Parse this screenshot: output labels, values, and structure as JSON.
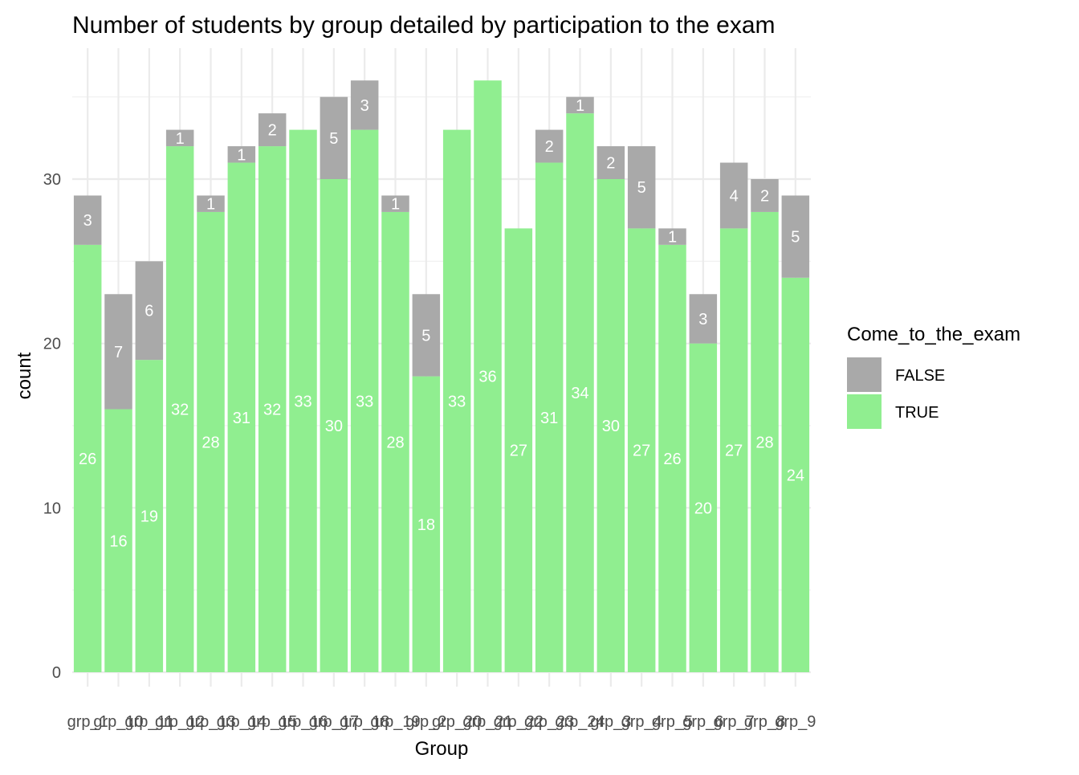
{
  "chart_data": {
    "type": "bar",
    "stacked": true,
    "title": "Number of students by group detailed by participation to the exam",
    "xlabel": "Group",
    "ylabel": "count",
    "ylim": [
      0,
      37.8
    ],
    "y_ticks": [
      0,
      10,
      20,
      30
    ],
    "grid": true,
    "legend_position": "right",
    "legend_title": "Come_to_the_exam",
    "categories": [
      "grp_1",
      "grp_10",
      "grp_11",
      "grp_12",
      "grp_13",
      "grp_14",
      "grp_15",
      "grp_16",
      "grp_17",
      "grp_18",
      "grp_19",
      "grp_2",
      "grp_20",
      "grp_21",
      "grp_22",
      "grp_23",
      "grp_24",
      "grp_3",
      "grp_4",
      "grp_5",
      "grp_6",
      "grp_7",
      "grp_8",
      "grp_9"
    ],
    "series": [
      {
        "name": "TRUE",
        "color": "#90EE90",
        "values": [
          26,
          16,
          19,
          32,
          28,
          31,
          32,
          33,
          30,
          33,
          28,
          18,
          33,
          36,
          27,
          31,
          34,
          30,
          27,
          26,
          20,
          27,
          28,
          24
        ]
      },
      {
        "name": "FALSE",
        "color": "#A9A9A9",
        "values": [
          3,
          7,
          6,
          1,
          1,
          1,
          2,
          0,
          5,
          3,
          1,
          5,
          0,
          0,
          0,
          2,
          1,
          2,
          5,
          1,
          3,
          4,
          2,
          5
        ]
      }
    ],
    "legend_entries": [
      {
        "name": "FALSE",
        "color": "#A9A9A9"
      },
      {
        "name": "TRUE",
        "color": "#90EE90"
      }
    ]
  }
}
